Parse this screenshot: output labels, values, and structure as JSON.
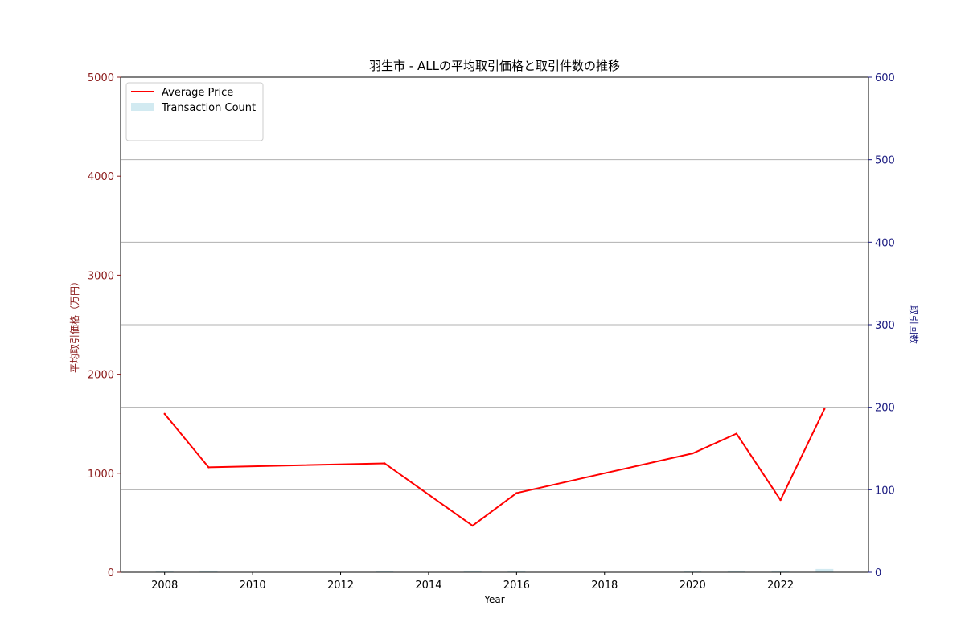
{
  "chart_data": {
    "type": "line",
    "title": "羽生市 - ALLの平均取引価格と取引件数の推移",
    "xlabel": "Year",
    "ylabel_left": "平均取引価格（万円）",
    "ylabel_right": "取引回数",
    "xlim": [
      2007,
      2024
    ],
    "ylim_left": [
      0,
      5000
    ],
    "ylim_right": [
      0,
      600
    ],
    "x_ticks": [
      2008,
      2010,
      2012,
      2014,
      2016,
      2018,
      2020,
      2022
    ],
    "y_ticks_left": [
      0,
      1000,
      2000,
      3000,
      4000,
      5000
    ],
    "y_ticks_right": [
      0,
      100,
      200,
      300,
      400,
      500,
      600
    ],
    "grid": "horizontal",
    "legend_position": "top-left",
    "colors": {
      "price": "#ff0000",
      "count": "#add8e6",
      "left_axis": "#8b1a1a",
      "right_axis": "#1a1a80"
    },
    "series": [
      {
        "name": "Average Price",
        "kind": "line",
        "axis": "left",
        "x": [
          2008,
          2009,
          2013,
          2015,
          2016,
          2020,
          2021,
          2022,
          2023
        ],
        "values": [
          1600,
          1060,
          1100,
          470,
          800,
          1200,
          1400,
          730,
          1650
        ]
      },
      {
        "name": "Transaction Count",
        "kind": "bar",
        "axis": "right",
        "x": [
          2008,
          2009,
          2013,
          2015,
          2016,
          2020,
          2021,
          2022,
          2023
        ],
        "values": [
          1,
          2,
          1,
          2,
          2,
          1,
          2,
          2,
          4
        ]
      }
    ]
  }
}
